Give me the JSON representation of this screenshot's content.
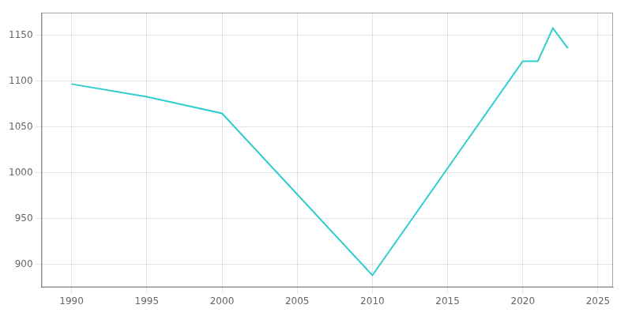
{
  "chart_data": {
    "type": "line",
    "x": [
      1990,
      1995,
      2000,
      2010,
      2020,
      2021,
      2022,
      2023
    ],
    "values": [
      1097,
      1083,
      1065,
      888,
      1122,
      1122,
      1158,
      1136
    ],
    "color": "#2ecece",
    "xlim": [
      1988,
      2026
    ],
    "ylim": [
      875,
      1175
    ],
    "xticks": [
      1990,
      1995,
      2000,
      2005,
      2010,
      2015,
      2020,
      2025
    ],
    "yticks": [
      900,
      950,
      1000,
      1050,
      1100,
      1150
    ],
    "grid": true
  }
}
